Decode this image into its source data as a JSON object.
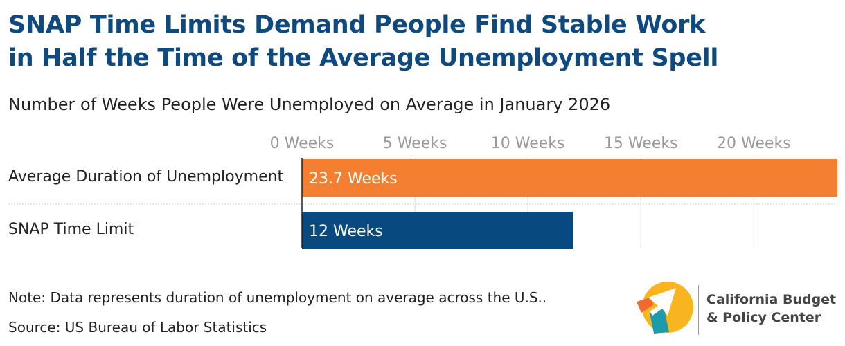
{
  "title_line1": "SNAP Time Limits Demand People Find Stable Work",
  "title_line2": "in Half the Time of the Average Unemployment Spell",
  "note": "Note: Data represents duration of unemployment on average across the U.S..",
  "source": "Source: US Bureau of Labor Statistics",
  "logo": {
    "line1": "California Budget",
    "line2": "& Policy Center"
  },
  "colors": {
    "title": "#0e4a80",
    "orange": "#f47f30",
    "navy": "#084a80",
    "grid": "#d9d9d9",
    "tick": "#999999",
    "logo_yellow": "#f9b51f",
    "logo_orange": "#f26a2e",
    "logo_teal": "#1e9aad"
  },
  "chart_data": {
    "type": "bar",
    "orientation": "horizontal",
    "title": "Number of Weeks People Were Unemployed on Average in January 2026",
    "categories": [
      "Average Duration of Unemployment",
      "SNAP Time Limit"
    ],
    "values": [
      23.7,
      12
    ],
    "value_labels": [
      "23.7 Weeks",
      "12 Weeks"
    ],
    "xlim": [
      0,
      23.7
    ],
    "ticks": [
      0,
      5,
      10,
      15,
      20
    ],
    "tick_labels": [
      "0 Weeks",
      "5 Weeks",
      "10 Weeks",
      "15 Weeks",
      "20 Weeks"
    ],
    "xlabel": "",
    "ylabel": "",
    "grid": true,
    "axis_position": "top"
  }
}
